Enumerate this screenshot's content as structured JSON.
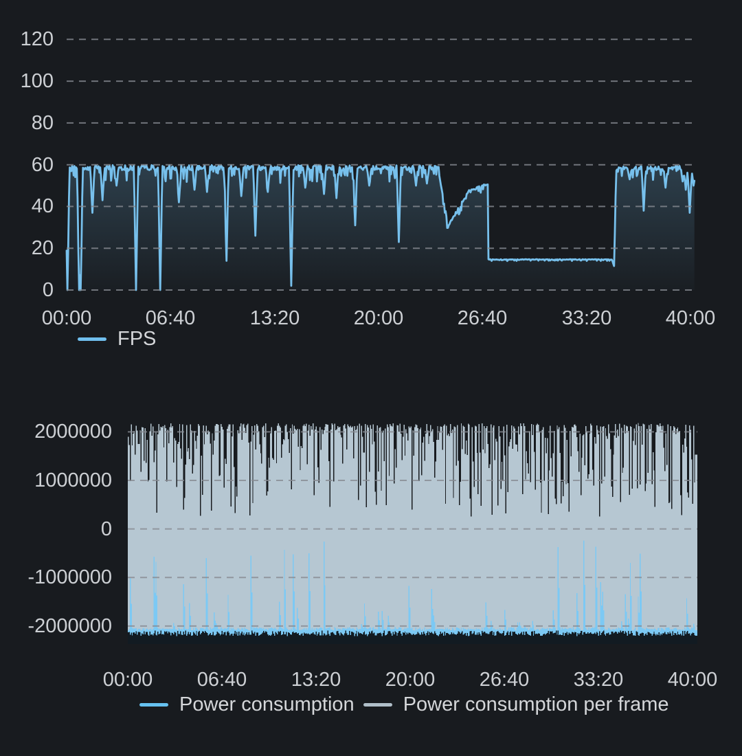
{
  "page": {
    "background_color": "#181b1f",
    "text_color": "#cdd0d4"
  },
  "chart_data": [
    {
      "id": "fps-chart",
      "type": "line",
      "title": "",
      "x_tick_labels": [
        "00:00",
        "06:40",
        "13:20",
        "20:00",
        "26:40",
        "33:20",
        "40:00"
      ],
      "x_tick_minutes": [
        0,
        6.6667,
        13.3333,
        20,
        26.6667,
        33.3333,
        40
      ],
      "xlim_minutes": [
        0,
        40.25
      ],
      "y_ticks": [
        120,
        100,
        80,
        60,
        40,
        20,
        0
      ],
      "ylim": [
        0,
        129
      ],
      "grid": "horizontal-dashed",
      "grid_color": "#878b92",
      "legend_position": "bottom-left",
      "legend": [
        {
          "label": "FPS",
          "color": "#70bfee"
        }
      ],
      "series": [
        {
          "name": "FPS",
          "color": "#77c0ec",
          "fill_gradient_top": "rgba(119,191,235,0.22)",
          "fill_gradient_bottom": "rgba(119,191,235,0.02)",
          "sample_step_minutes": 0.05,
          "value_cap": 60,
          "base_segments": [
            [
              0,
              23.9,
              58.5,
              58.5,
              4.5
            ],
            [
              23.9,
              24.5,
              54,
              29,
              2.5
            ],
            [
              24.5,
              25.7,
              31,
              46,
              2.5
            ],
            [
              25.7,
              27.05,
              47,
              51,
              2
            ],
            [
              27.05,
              35.08,
              14.6,
              14.6,
              0.5
            ],
            [
              35.08,
              35.35,
              54,
              58,
              2.5
            ],
            [
              35.35,
              40.25,
              58.4,
              58.4,
              3.5
            ]
          ],
          "dips": [
            [
              0.05,
              0
            ],
            [
              0.78,
              0
            ],
            [
              0.92,
              0
            ],
            [
              1.67,
              37
            ],
            [
              2.3,
              43
            ],
            [
              3.2,
              50
            ],
            [
              4.45,
              0
            ],
            [
              6.0,
              0
            ],
            [
              7.2,
              42
            ],
            [
              8.2,
              48
            ],
            [
              9.0,
              47
            ],
            [
              10.25,
              14
            ],
            [
              11.2,
              45
            ],
            [
              12.1,
              26
            ],
            [
              12.9,
              47
            ],
            [
              14.4,
              2
            ],
            [
              15.3,
              49
            ],
            [
              16.5,
              46
            ],
            [
              17.3,
              44
            ],
            [
              18.5,
              31
            ],
            [
              19.4,
              50
            ],
            [
              21.3,
              23
            ],
            [
              22.4,
              50
            ],
            [
              23.1,
              51
            ],
            [
              35.1,
              11.5
            ],
            [
              36.1,
              53
            ],
            [
              37.0,
              38
            ],
            [
              38.4,
              49
            ],
            [
              39.5,
              52
            ],
            [
              39.7,
              48
            ],
            [
              39.95,
              37
            ],
            [
              40.2,
              50
            ]
          ]
        }
      ]
    },
    {
      "id": "power-chart",
      "type": "area",
      "title": "",
      "x_tick_labels": [
        "00:00",
        "06:40",
        "13:20",
        "20:00",
        "26:40",
        "33:20",
        "40:00"
      ],
      "x_tick_minutes": [
        0,
        6.6667,
        13.3333,
        20,
        26.6667,
        33.3333,
        40
      ],
      "xlim_minutes": [
        0,
        40.2
      ],
      "y_ticks": [
        2000000,
        1000000,
        0,
        -1000000,
        -2000000
      ],
      "ylim": [
        -2370000,
        2260000
      ],
      "grid": "horizontal-dashed",
      "grid_color": "#878b92",
      "legend_position": "bottom-left",
      "legend": [
        {
          "label": "Power consumption",
          "color": "#66c2f0"
        },
        {
          "label": "Power consumption per frame",
          "color": "#b0bfc9"
        }
      ],
      "series": [
        {
          "name": "Power consumption per frame",
          "color": "#b6c7d2",
          "render": "noise-steps",
          "sample_step_minutes": 0.07,
          "profile": {
            "top_value": 2150000,
            "drop_range": 1900000,
            "drop_skew": 3,
            "wobble": 60000
          }
        },
        {
          "name": "Power consumption",
          "color": "#7cc9f4",
          "render": "spike-steps",
          "sample_step_minutes": 0.07,
          "profile": {
            "baseline": -2060000,
            "baseline_jitter": 70000,
            "spike_probability": 0.2,
            "spike_range": 1850000,
            "spike_skew": 3
          }
        }
      ],
      "bottom_strip": {
        "color": "#121b22",
        "top_value": -2150000,
        "jitter": 110000
      }
    }
  ]
}
